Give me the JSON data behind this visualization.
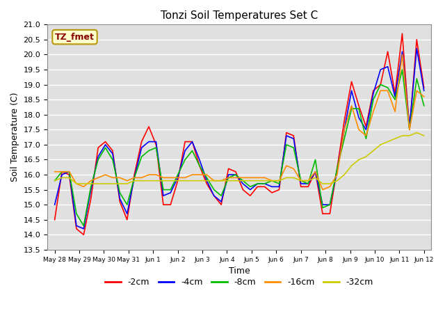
{
  "title": "Tonzi Soil Temperatures Set C",
  "xlabel": "Time",
  "ylabel": "Soil Temperature (C)",
  "ylim": [
    13.5,
    21.0
  ],
  "yticks": [
    13.5,
    14.0,
    14.5,
    15.0,
    15.5,
    16.0,
    16.5,
    17.0,
    17.5,
    18.0,
    18.5,
    19.0,
    19.5,
    20.0,
    20.5,
    21.0
  ],
  "annotation_text": "TZ_fmet",
  "annotation_color": "#8b0000",
  "annotation_bg": "#ffffcc",
  "annotation_border": "#b8960c",
  "xtick_labels": [
    "May 28",
    "May 29",
    "May 30",
    "May 31",
    "Jun 1",
    "Jun 2",
    "Jun 3",
    "Jun 4",
    "Jun 5",
    "Jun 6",
    "Jun 7",
    "Jun 8",
    "Jun 9",
    "Jun 10",
    "Jun 11",
    "Jun 12"
  ],
  "legend_labels": [
    "-2cm",
    "-4cm",
    "-8cm",
    "-16cm",
    "-32cm"
  ],
  "legend_colors": [
    "#ff0000",
    "#0000ff",
    "#00bb00",
    "#ff8c00",
    "#cccc00"
  ],
  "series": {
    "-2cm": {
      "color": "#ff0000",
      "lw": 1.2,
      "y": [
        14.5,
        16.1,
        16.0,
        14.2,
        14.0,
        15.2,
        16.9,
        17.1,
        16.8,
        15.1,
        14.5,
        16.0,
        17.1,
        17.6,
        17.0,
        15.0,
        15.0,
        15.8,
        17.1,
        17.1,
        16.3,
        15.7,
        15.3,
        15.0,
        16.2,
        16.1,
        15.5,
        15.3,
        15.6,
        15.6,
        15.4,
        15.5,
        17.4,
        17.3,
        15.6,
        15.6,
        16.1,
        14.7,
        14.7,
        16.2,
        17.8,
        19.1,
        18.3,
        17.6,
        18.8,
        19.0,
        20.1,
        18.7,
        20.7,
        17.5,
        20.5,
        18.9
      ]
    },
    "-4cm": {
      "color": "#0000ff",
      "lw": 1.2,
      "y": [
        15.0,
        16.0,
        16.1,
        14.3,
        14.2,
        15.5,
        16.6,
        17.0,
        16.7,
        15.2,
        14.7,
        15.9,
        16.9,
        17.1,
        17.1,
        15.3,
        15.4,
        15.9,
        16.8,
        17.1,
        16.5,
        15.8,
        15.3,
        15.1,
        16.0,
        16.0,
        15.7,
        15.5,
        15.7,
        15.7,
        15.6,
        15.6,
        17.3,
        17.2,
        15.7,
        15.7,
        16.1,
        15.0,
        15.0,
        16.1,
        17.5,
        18.8,
        17.9,
        17.5,
        18.7,
        19.5,
        19.6,
        18.6,
        20.1,
        17.6,
        20.2,
        18.8
      ]
    },
    "-8cm": {
      "color": "#00bb00",
      "lw": 1.2,
      "y": [
        15.8,
        16.1,
        16.1,
        14.7,
        14.3,
        15.6,
        16.5,
        16.9,
        16.5,
        15.4,
        15.0,
        15.9,
        16.6,
        16.8,
        16.9,
        15.5,
        15.5,
        16.0,
        16.5,
        16.8,
        16.3,
        15.9,
        15.5,
        15.3,
        15.9,
        16.0,
        15.8,
        15.6,
        15.7,
        15.7,
        15.8,
        15.7,
        17.0,
        16.9,
        15.8,
        15.7,
        16.5,
        14.9,
        15.0,
        16.2,
        17.2,
        18.2,
        18.2,
        17.2,
        18.5,
        19.0,
        18.9,
        18.5,
        19.5,
        17.5,
        19.2,
        18.3
      ]
    },
    "-16cm": {
      "color": "#ff8c00",
      "lw": 1.2,
      "y": [
        16.1,
        16.1,
        16.1,
        15.7,
        15.6,
        15.8,
        15.9,
        16.0,
        15.9,
        15.9,
        15.8,
        15.9,
        15.9,
        16.0,
        16.0,
        15.9,
        15.9,
        15.9,
        15.9,
        16.0,
        16.0,
        16.0,
        15.8,
        15.8,
        15.9,
        15.9,
        15.9,
        15.9,
        15.9,
        15.9,
        15.8,
        15.8,
        16.3,
        16.2,
        15.8,
        15.8,
        16.1,
        15.5,
        15.6,
        16.0,
        17.5,
        18.3,
        17.5,
        17.3,
        18.1,
        18.8,
        18.8,
        18.1,
        20.0,
        17.5,
        18.8,
        18.6
      ]
    },
    "-32cm": {
      "color": "#cccc00",
      "lw": 1.2,
      "y": [
        15.8,
        15.9,
        15.9,
        15.7,
        15.7,
        15.7,
        15.7,
        15.7,
        15.7,
        15.7,
        15.7,
        15.8,
        15.8,
        15.8,
        15.8,
        15.8,
        15.8,
        15.8,
        15.8,
        15.8,
        15.8,
        15.8,
        15.8,
        15.8,
        15.8,
        15.8,
        15.8,
        15.8,
        15.8,
        15.8,
        15.8,
        15.8,
        15.9,
        15.9,
        15.8,
        15.8,
        15.9,
        15.7,
        15.7,
        15.8,
        16.0,
        16.3,
        16.5,
        16.6,
        16.8,
        17.0,
        17.1,
        17.2,
        17.3,
        17.3,
        17.4,
        17.3
      ]
    }
  }
}
